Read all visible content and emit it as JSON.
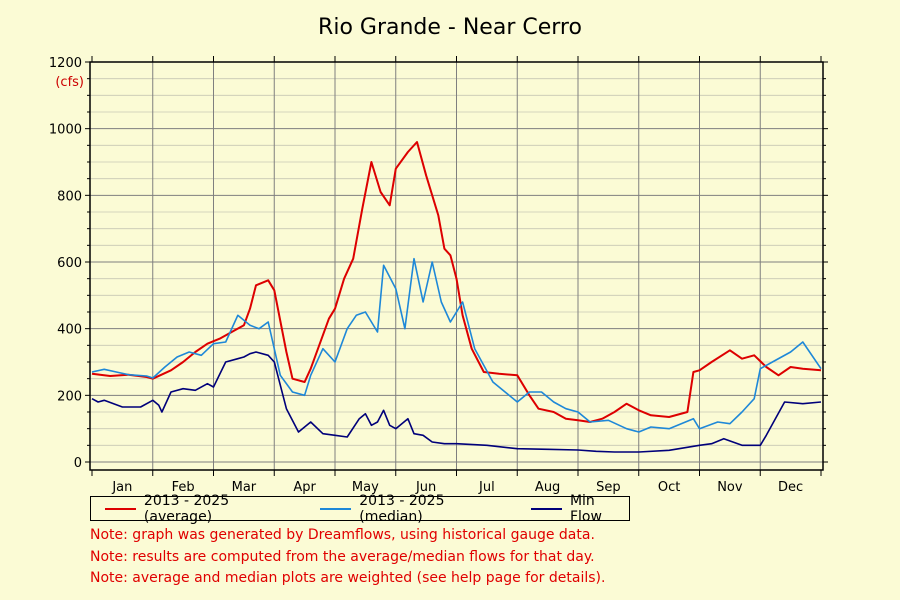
{
  "chart_data": {
    "type": "line",
    "title": "Rio Grande - Near Cerro",
    "ylabel_unit": "(cfs)",
    "ylim": [
      0,
      1200
    ],
    "yticks": [
      0,
      200,
      400,
      600,
      800,
      1000,
      1200
    ],
    "months": [
      "Jan",
      "Feb",
      "Mar",
      "Apr",
      "May",
      "Jun",
      "Jul",
      "Aug",
      "Sep",
      "Oct",
      "Nov",
      "Dec"
    ],
    "x_unit": "month (0 = Jan 1, 12 = Dec 31)",
    "series": [
      {
        "name": "2013 - 2025 (average)",
        "color": "#dd0000",
        "x": [
          0,
          0.3,
          0.6,
          0.9,
          1.0,
          1.3,
          1.5,
          1.7,
          1.9,
          2.1,
          2.3,
          2.5,
          2.6,
          2.7,
          2.9,
          3.0,
          3.2,
          3.3,
          3.5,
          3.6,
          3.9,
          4.0,
          4.15,
          4.3,
          4.45,
          4.6,
          4.75,
          4.9,
          5.0,
          5.2,
          5.35,
          5.5,
          5.7,
          5.8,
          5.9,
          6.0,
          6.1,
          6.25,
          6.45,
          6.7,
          7.0,
          7.2,
          7.35,
          7.6,
          7.8,
          8.0,
          8.2,
          8.4,
          8.6,
          8.8,
          9.0,
          9.2,
          9.5,
          9.8,
          9.9,
          10.0,
          10.2,
          10.5,
          10.7,
          10.9,
          11.1,
          11.3,
          11.5,
          11.7,
          12.0
        ],
        "y": [
          265,
          258,
          262,
          255,
          250,
          275,
          300,
          330,
          355,
          370,
          390,
          410,
          460,
          530,
          545,
          515,
          330,
          250,
          240,
          280,
          430,
          460,
          550,
          610,
          760,
          900,
          810,
          770,
          880,
          930,
          960,
          860,
          740,
          640,
          620,
          550,
          440,
          340,
          270,
          265,
          260,
          200,
          160,
          150,
          130,
          125,
          120,
          130,
          150,
          175,
          155,
          140,
          135,
          150,
          270,
          275,
          300,
          335,
          310,
          320,
          285,
          260,
          285,
          280,
          275
        ]
      },
      {
        "name": "2013 - 2025 (median)",
        "color": "#1e88d8",
        "x": [
          0,
          0.2,
          0.4,
          0.6,
          0.9,
          1.0,
          1.2,
          1.4,
          1.6,
          1.8,
          2.0,
          2.2,
          2.4,
          2.6,
          2.75,
          2.9,
          3.1,
          3.3,
          3.5,
          3.6,
          3.8,
          4.0,
          4.2,
          4.35,
          4.5,
          4.7,
          4.8,
          5.0,
          5.15,
          5.3,
          5.45,
          5.6,
          5.75,
          5.9,
          6.1,
          6.3,
          6.6,
          6.8,
          7.0,
          7.2,
          7.4,
          7.6,
          7.8,
          8.0,
          8.2,
          8.5,
          8.8,
          9.0,
          9.2,
          9.5,
          9.9,
          10.0,
          10.3,
          10.5,
          10.7,
          10.9,
          11.0,
          11.2,
          11.5,
          11.7,
          12.0
        ],
        "y": [
          270,
          278,
          270,
          262,
          258,
          252,
          285,
          315,
          330,
          320,
          355,
          360,
          440,
          410,
          400,
          420,
          260,
          210,
          200,
          260,
          340,
          300,
          400,
          440,
          450,
          390,
          590,
          520,
          400,
          610,
          480,
          600,
          480,
          420,
          480,
          340,
          240,
          210,
          180,
          210,
          210,
          180,
          160,
          150,
          120,
          125,
          100,
          90,
          105,
          100,
          130,
          100,
          120,
          115,
          150,
          190,
          280,
          300,
          330,
          360,
          280
        ]
      },
      {
        "name": "Min Flow",
        "color": "#00007a",
        "x": [
          0,
          0.1,
          0.2,
          0.5,
          0.8,
          1.0,
          1.1,
          1.15,
          1.3,
          1.5,
          1.7,
          1.9,
          2.0,
          2.2,
          2.4,
          2.5,
          2.6,
          2.7,
          2.9,
          3.0,
          3.2,
          3.4,
          3.6,
          3.8,
          4.0,
          4.2,
          4.4,
          4.5,
          4.6,
          4.7,
          4.8,
          4.9,
          5.0,
          5.2,
          5.3,
          5.45,
          5.6,
          5.8,
          6.0,
          6.5,
          7.0,
          7.5,
          8.0,
          8.3,
          8.6,
          9.0,
          9.5,
          10.0,
          10.2,
          10.4,
          10.7,
          11.0,
          11.1,
          11.4,
          11.7,
          12.0
        ],
        "y": [
          190,
          180,
          185,
          165,
          165,
          185,
          170,
          150,
          210,
          220,
          215,
          235,
          225,
          300,
          310,
          315,
          325,
          330,
          320,
          300,
          160,
          90,
          120,
          85,
          80,
          75,
          130,
          145,
          110,
          120,
          155,
          110,
          100,
          130,
          85,
          80,
          60,
          55,
          55,
          50,
          40,
          38,
          36,
          32,
          30,
          30,
          35,
          50,
          55,
          70,
          50,
          50,
          80,
          180,
          175,
          180
        ]
      }
    ],
    "legend": [
      "2013 - 2025 (average)",
      "2013 - 2025 (median)",
      "Min Flow"
    ],
    "notes": [
      "Note: graph was generated by Dreamflows, using historical gauge data.",
      "Note: results are computed from the average/median flows for that day.",
      "Note: average and median plots are weighted (see help page for details)."
    ],
    "grid": true,
    "colors": {
      "background": "#fbfbd5",
      "grid": "#7f7f7f",
      "note": "#e00000"
    }
  }
}
